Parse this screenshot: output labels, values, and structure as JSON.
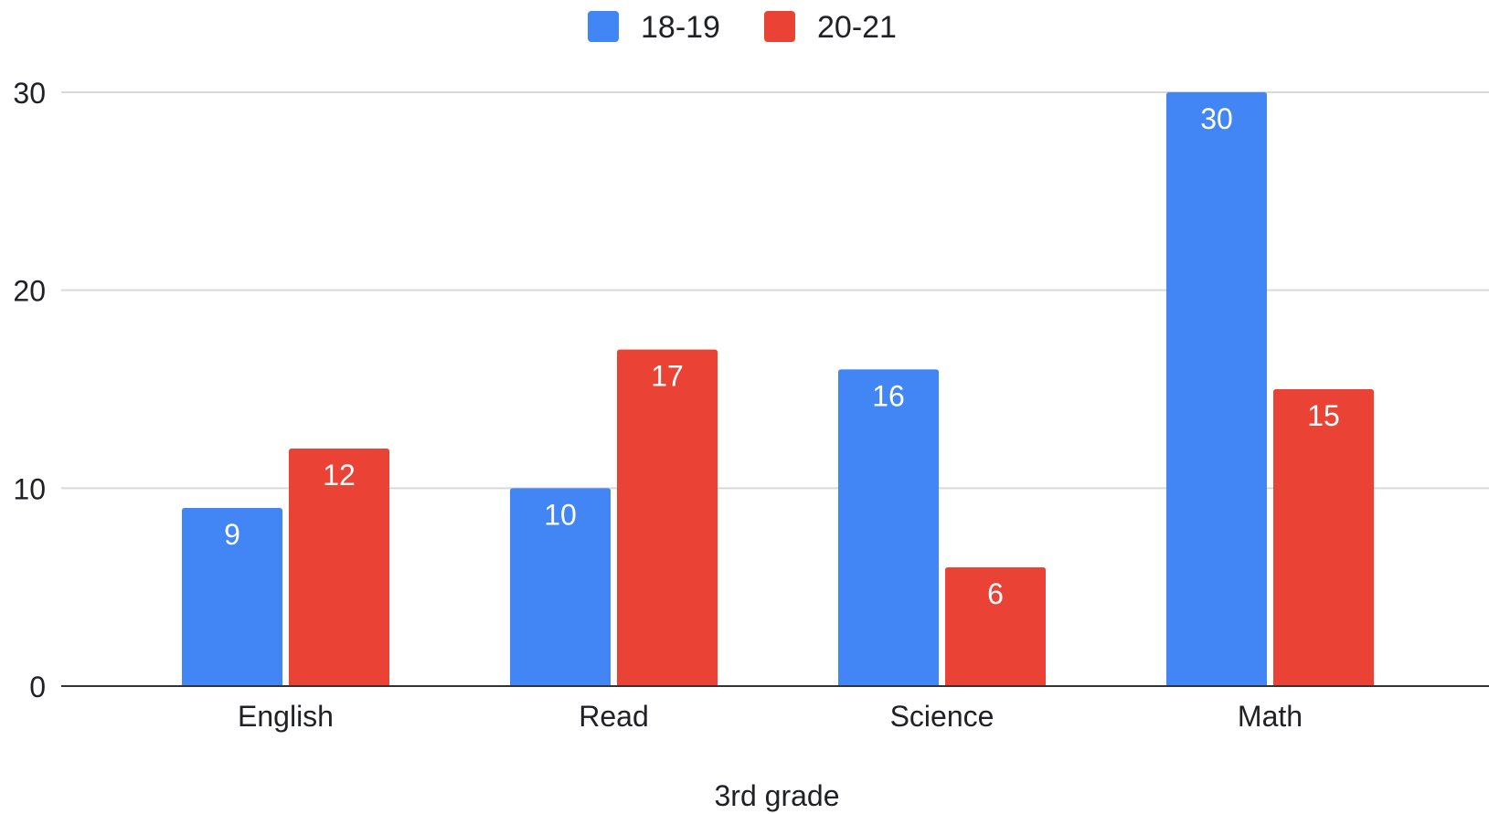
{
  "chart_data": {
    "type": "bar",
    "title": "",
    "xlabel": "3rd grade",
    "ylabel": "",
    "categories": [
      "English",
      "Read",
      "Science",
      "Math"
    ],
    "series": [
      {
        "name": "18-19",
        "color": "#4285F4",
        "values": [
          9,
          10,
          16,
          30
        ]
      },
      {
        "name": "20-21",
        "color": "#EA4335",
        "values": [
          12,
          17,
          6,
          15
        ]
      }
    ],
    "ylim": [
      0,
      30
    ],
    "yticks": [
      0,
      10,
      20,
      30
    ],
    "grid": true,
    "legend_position": "top-center",
    "data_labels": true
  },
  "colors": {
    "grid": "#d9d9d9",
    "axis": "#333333",
    "text": "#202124",
    "label_text": "#ffffff"
  }
}
